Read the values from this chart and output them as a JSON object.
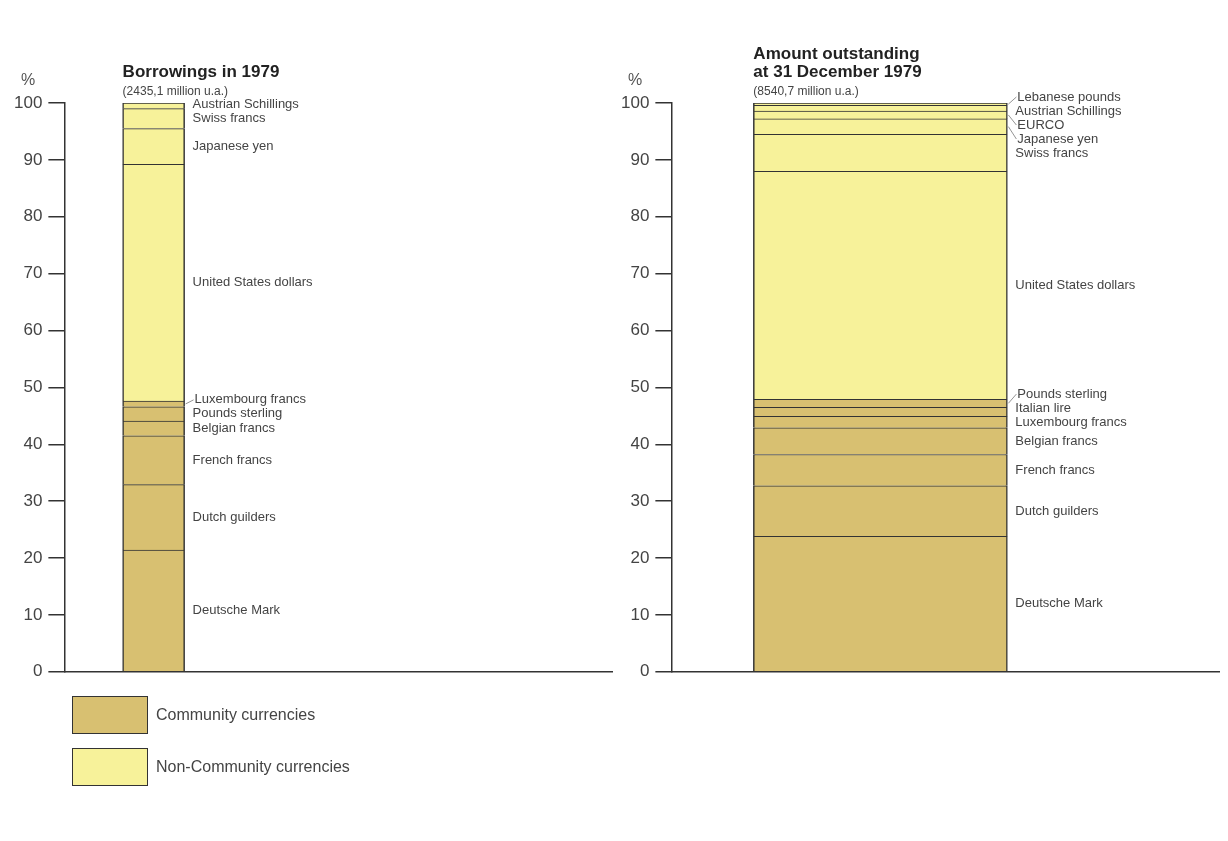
{
  "chart_data": [
    {
      "type": "bar",
      "title": "Borrowings in 1979",
      "subtitle": "(2435,1 million u.a.)",
      "ylabel": "%",
      "categories": [
        null
      ],
      "stacked": true,
      "ylim": [
        0,
        100
      ],
      "yticks": [
        0,
        10,
        20,
        30,
        40,
        50,
        60,
        70,
        80,
        90,
        100
      ],
      "grid": false,
      "legend": false,
      "annotations": [
        "Community currencies",
        "Non-Community currencies"
      ],
      "series": [
        {
          "name": "Deutsche Mark",
          "color": "#d8c071",
          "values": [
            21.4
          ]
        },
        {
          "name": "Dutch guilders",
          "color": "#d8c071",
          "values": [
            11.5
          ]
        },
        {
          "name": "French francs",
          "color": "#d8c071",
          "values": [
            8.6
          ]
        },
        {
          "name": "Belgian francs",
          "color": "#d8c071",
          "values": [
            2.6
          ]
        },
        {
          "name": "Pounds sterling",
          "color": "#d8c071",
          "values": [
            2.5
          ]
        },
        {
          "name": "Luxembourg francs",
          "color": "#d8c071",
          "values": [
            1.0
          ]
        },
        {
          "name": "United States dollars",
          "color": "#f7f29a",
          "values": [
            41.6
          ]
        },
        {
          "name": "Japanese yen",
          "color": "#f7f29a",
          "values": [
            6.3
          ]
        },
        {
          "name": "Swiss francs",
          "color": "#f7f29a",
          "values": [
            3.5
          ]
        },
        {
          "name": "Austrian Schillings",
          "color": "#f7f29a",
          "values": [
            1.0
          ]
        }
      ]
    },
    {
      "type": "bar",
      "title": "Amount outstanding at 31 December 1979",
      "subtitle": "(8540,7 million u.a.)",
      "ylabel": "%",
      "categories": [
        null
      ],
      "stacked": true,
      "ylim": [
        0,
        100
      ],
      "yticks": [
        0,
        10,
        20,
        30,
        40,
        50,
        60,
        70,
        80,
        90,
        100
      ],
      "grid": false,
      "legend": false,
      "series": [
        {
          "name": "Deutsche Mark",
          "color": "#d8c071",
          "values": [
            23.8
          ]
        },
        {
          "name": "Dutch guilders",
          "color": "#d8c071",
          "values": [
            8.9
          ]
        },
        {
          "name": "French francs",
          "color": "#d8c071",
          "values": [
            5.5
          ]
        },
        {
          "name": "Belgian francs",
          "color": "#d8c071",
          "values": [
            4.7
          ]
        },
        {
          "name": "Luxembourg francs",
          "color": "#d8c071",
          "values": [
            2.0
          ]
        },
        {
          "name": "Italian lire",
          "color": "#d8c071",
          "values": [
            1.6
          ]
        },
        {
          "name": "Pounds sterling",
          "color": "#d8c071",
          "values": [
            1.4
          ]
        },
        {
          "name": "United States dollars",
          "color": "#f7f29a",
          "values": [
            40.1
          ]
        },
        {
          "name": "Swiss francs",
          "color": "#f7f29a",
          "values": [
            6.5
          ]
        },
        {
          "name": "Japanese yen",
          "color": "#f7f29a",
          "values": [
            2.7
          ]
        },
        {
          "name": "EURCO",
          "color": "#f7f29a",
          "values": [
            1.4
          ]
        },
        {
          "name": "Austrian Schillings",
          "color": "#f7f29a",
          "values": [
            1.0
          ]
        },
        {
          "name": "Lebanese pounds",
          "color": "#f7f29a",
          "values": [
            0.4
          ]
        }
      ]
    }
  ]
}
